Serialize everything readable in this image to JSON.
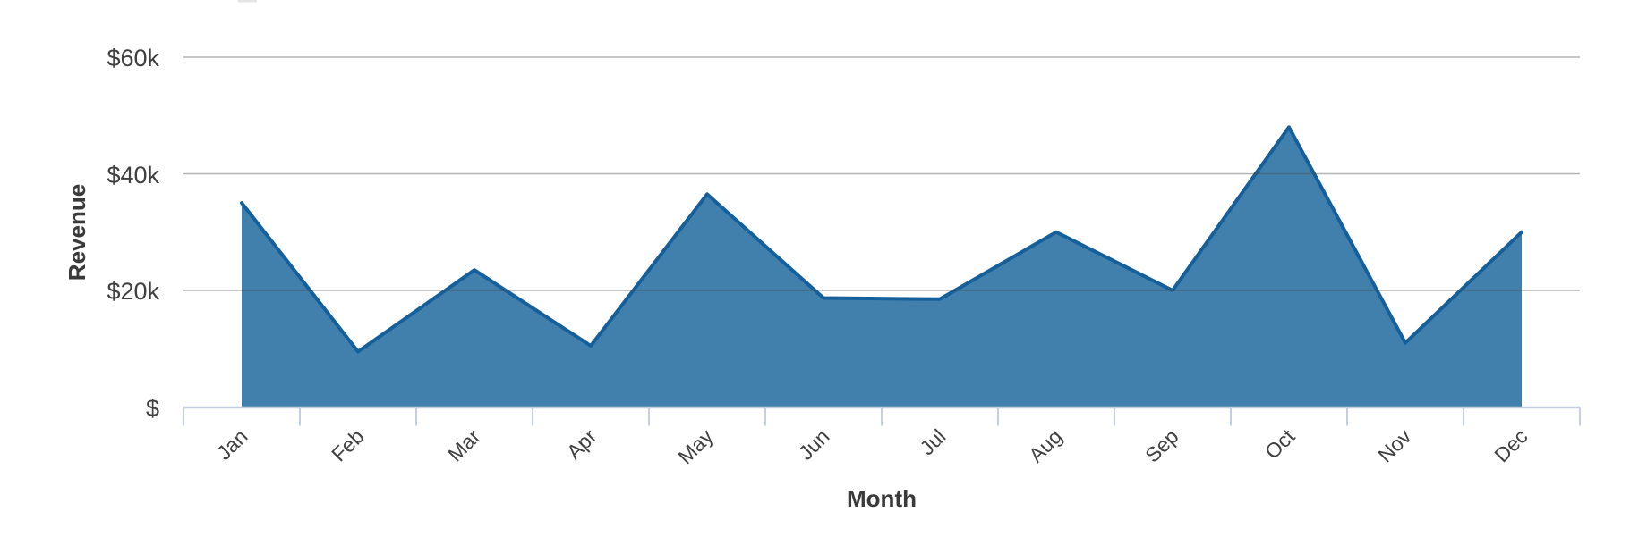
{
  "chart_data": {
    "type": "area",
    "categories": [
      "Jan",
      "Feb",
      "Mar",
      "Apr",
      "May",
      "Jun",
      "Jul",
      "Aug",
      "Sep",
      "Oct",
      "Nov",
      "Dec"
    ],
    "values": [
      35000,
      9500,
      23500,
      10500,
      36500,
      18700,
      18500,
      30000,
      20000,
      48000,
      11000,
      30000
    ],
    "xlabel": "Month",
    "ylabel": "Revenue",
    "y_tick_labels": [
      "$",
      "$20k",
      "$40k",
      "$60k"
    ],
    "y_tick_values": [
      0,
      20000,
      40000,
      60000
    ],
    "ylim": [
      0,
      60000
    ],
    "x_boundary_tick_count": 13,
    "grid": "horizontal gridlines at $20k, $40k, $60k",
    "legend": "none",
    "colors": {
      "area_fill": "#4180AC",
      "line_stroke": "#15609B",
      "gridline_gray": "#B3B3B3",
      "axis_line": "#C4D0E0",
      "label_text": "#404040"
    }
  }
}
